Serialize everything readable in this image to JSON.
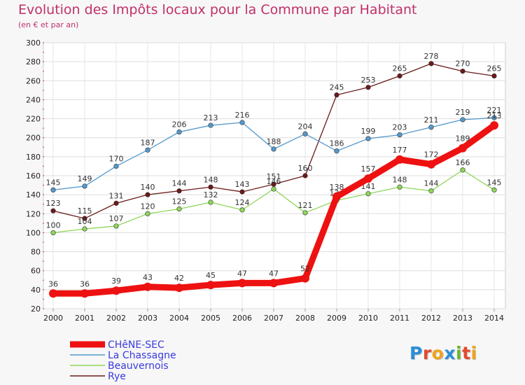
{
  "title": "Evolution des Impôts locaux pour la Commune par Habitant",
  "subtitle": "(en € et par an)",
  "logo": {
    "text": "Proxiti",
    "colors": [
      "#2a8fd9",
      "#e34a2f",
      "#f0a31c",
      "#2a8fd9",
      "#6bb633",
      "#e34a2f",
      "#f0a31c"
    ]
  },
  "chart_data": {
    "type": "line",
    "title": "Evolution des Impôts locaux pour la Commune par Habitant",
    "subtitle": "(en € et par an)",
    "xlabel": "",
    "ylabel": "",
    "ylim": [
      20,
      300
    ],
    "yticks": [
      20,
      40,
      60,
      80,
      100,
      120,
      140,
      160,
      180,
      200,
      220,
      240,
      260,
      280,
      300
    ],
    "x": [
      "2000",
      "2001",
      "2002",
      "2003",
      "2004",
      "2005",
      "2006",
      "2007",
      "2008",
      "2009",
      "2010",
      "2011",
      "2012",
      "2013",
      "2014"
    ],
    "grid": true,
    "legend_position": "bottom-left",
    "series": [
      {
        "name": "Rye",
        "color": "#6b1a1a",
        "values": [
          123,
          115,
          131,
          140,
          144,
          148,
          143,
          151,
          160,
          245,
          253,
          265,
          278,
          270,
          265
        ]
      },
      {
        "name": "Beauvernois",
        "color": "#8ed65a",
        "values": [
          100,
          104,
          107,
          120,
          125,
          132,
          124,
          146,
          121,
          134,
          141,
          148,
          144,
          166,
          145
        ]
      },
      {
        "name": "La Chassagne",
        "color": "#5599cc",
        "values": [
          145,
          149,
          170,
          187,
          206,
          213,
          216,
          188,
          204,
          186,
          199,
          203,
          211,
          219,
          221
        ]
      },
      {
        "name": "CHêNE-SEC",
        "color": "#ee1111",
        "values": [
          36,
          36,
          39,
          43,
          42,
          45,
          47,
          47,
          52,
          138,
          157,
          177,
          172,
          189,
          213
        ]
      }
    ],
    "legend": [
      "CHêNE-SEC",
      "La Chassagne",
      "Beauvernois",
      "Rye"
    ]
  }
}
